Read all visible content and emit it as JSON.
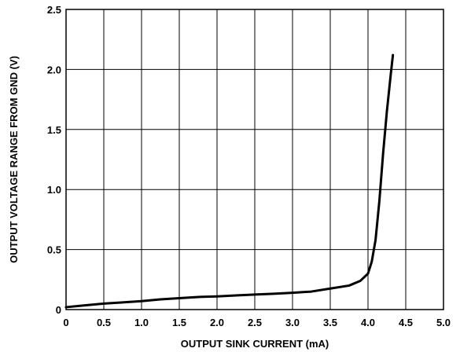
{
  "chart_data": {
    "type": "line",
    "title": "",
    "xlabel": "OUTPUT SINK CURRENT (mA)",
    "ylabel": "OUTPUT VOLTAGE RANGE FROM GND (V)",
    "xlim": [
      0,
      5.0
    ],
    "ylim": [
      0,
      2.5
    ],
    "x_ticks": [
      "0",
      "0.5",
      "1.0",
      "1.5",
      "2.0",
      "2.5",
      "3.0",
      "3.5",
      "4.0",
      "4.5",
      "5.0"
    ],
    "y_ticks": [
      "0",
      "0.5",
      "1.0",
      "1.5",
      "2.0",
      "2.5"
    ],
    "grid": true,
    "series": [
      {
        "x": [
          0,
          0.25,
          0.5,
          0.75,
          1.0,
          1.25,
          1.5,
          1.75,
          2.0,
          2.25,
          2.5,
          2.75,
          3.0,
          3.25,
          3.5,
          3.75,
          3.9,
          4.0,
          4.05,
          4.1,
          4.15,
          4.2,
          4.25,
          4.3,
          4.33
        ],
        "y": [
          0.02,
          0.035,
          0.05,
          0.06,
          0.07,
          0.085,
          0.095,
          0.105,
          0.11,
          0.118,
          0.125,
          0.132,
          0.14,
          0.15,
          0.175,
          0.2,
          0.24,
          0.3,
          0.4,
          0.58,
          0.9,
          1.3,
          1.65,
          1.95,
          2.12
        ],
        "color": "#000000"
      }
    ]
  }
}
